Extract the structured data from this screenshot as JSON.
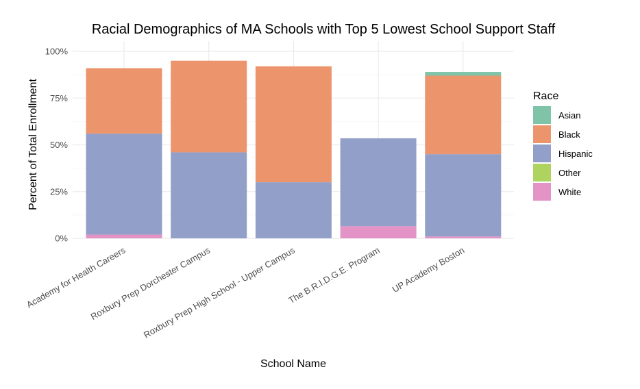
{
  "chart_data": {
    "type": "bar",
    "stacked": true,
    "title": "Racial Demographics of MA Schools with Top 5 Lowest School Support Staff",
    "xlabel": "School Name",
    "ylabel": "Percent of Total Enrollment",
    "ylim": [
      0,
      100
    ],
    "y_ticks": [
      "0%",
      "25%",
      "50%",
      "75%",
      "100%"
    ],
    "y_tick_values": [
      0,
      25,
      50,
      75,
      100
    ],
    "grid": true,
    "legend_position": "right",
    "legend_title": "Race",
    "categories": [
      "Academy for Health Careers",
      "Roxbury Prep Dorchester Campus",
      "Roxbury Prep High School - Upper Campus",
      "The B.R.I.D.G.E. Program",
      "UP Academy Boston"
    ],
    "series": [
      {
        "name": "Asian",
        "color": "#7fc4a9",
        "values": [
          0,
          0,
          0,
          0,
          2
        ]
      },
      {
        "name": "Black",
        "color": "#ec946b",
        "values": [
          35,
          49,
          62,
          0,
          42
        ]
      },
      {
        "name": "Hispanic",
        "color": "#929fc8",
        "values": [
          54,
          46,
          30,
          47,
          44
        ]
      },
      {
        "name": "Other",
        "color": "#afd35f",
        "values": [
          0,
          0,
          0,
          0,
          0
        ]
      },
      {
        "name": "White",
        "color": "#e393c5",
        "values": [
          2,
          0,
          0,
          6.5,
          1
        ]
      }
    ],
    "stack_order_bottom_to_top": [
      "White",
      "Other",
      "Hispanic",
      "Black",
      "Asian"
    ]
  }
}
